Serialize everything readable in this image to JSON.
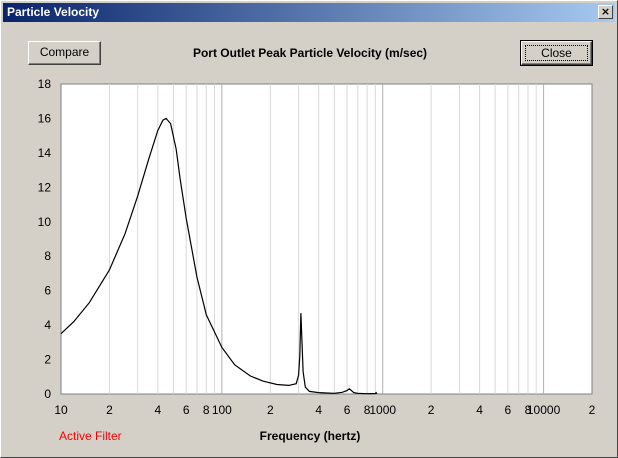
{
  "window": {
    "title": "Particle Velocity",
    "close_glyph": "×"
  },
  "buttons": {
    "compare_label": "Compare",
    "close_label": "Close"
  },
  "status": {
    "active_filter": "Active Filter"
  },
  "colors": {
    "titlebar_start": "#0a246a",
    "titlebar_end": "#a6caf0",
    "active_filter": "#ff0000",
    "curve": "#000000"
  },
  "chart_data": {
    "type": "line",
    "title": "Port Outlet Peak Particle Velocity (m/sec)",
    "xlabel": "Frequency (hertz)",
    "ylabel": "",
    "x_scale": "log",
    "xlim": [
      10,
      20000
    ],
    "ylim": [
      0,
      18
    ],
    "grid": true,
    "y_ticks": [
      "0",
      "2",
      "4",
      "6",
      "8",
      "10",
      "12",
      "14",
      "16",
      "18"
    ],
    "x_ticks": [
      {
        "value": 10,
        "label": "10"
      },
      {
        "value": 20,
        "label": "2"
      },
      {
        "value": 40,
        "label": "4"
      },
      {
        "value": 60,
        "label": "6"
      },
      {
        "value": 80,
        "label": "8"
      },
      {
        "value": 100,
        "label": "100"
      },
      {
        "value": 200,
        "label": "2"
      },
      {
        "value": 400,
        "label": "4"
      },
      {
        "value": 600,
        "label": "6"
      },
      {
        "value": 800,
        "label": "8"
      },
      {
        "value": 1000,
        "label": "1000"
      },
      {
        "value": 2000,
        "label": "2"
      },
      {
        "value": 4000,
        "label": "4"
      },
      {
        "value": 6000,
        "label": "6"
      },
      {
        "value": 8000,
        "label": "8"
      },
      {
        "value": 10000,
        "label": "10000"
      },
      {
        "value": 20000,
        "label": "2"
      }
    ],
    "series": [
      {
        "x": [
          10,
          12,
          15,
          20,
          25,
          30,
          35,
          40,
          43,
          45,
          48,
          52,
          55,
          60,
          70,
          80,
          100,
          120,
          150,
          180,
          220,
          260,
          290,
          300,
          305,
          310,
          315,
          320,
          330,
          350,
          400,
          500,
          560,
          600,
          620,
          640,
          660,
          700,
          800,
          900,
          910,
          920
        ],
        "y": [
          3.5,
          4.2,
          5.3,
          7.2,
          9.3,
          11.5,
          13.6,
          15.3,
          15.9,
          16.0,
          15.7,
          14.2,
          12.5,
          10.2,
          6.8,
          4.6,
          2.7,
          1.7,
          1.05,
          0.75,
          0.55,
          0.5,
          0.6,
          1.1,
          2.2,
          4.7,
          3.0,
          1.3,
          0.4,
          0.15,
          0.08,
          0.04,
          0.1,
          0.2,
          0.3,
          0.2,
          0.08,
          0.04,
          0.02,
          0.03,
          0.08,
          0.02
        ]
      }
    ]
  }
}
